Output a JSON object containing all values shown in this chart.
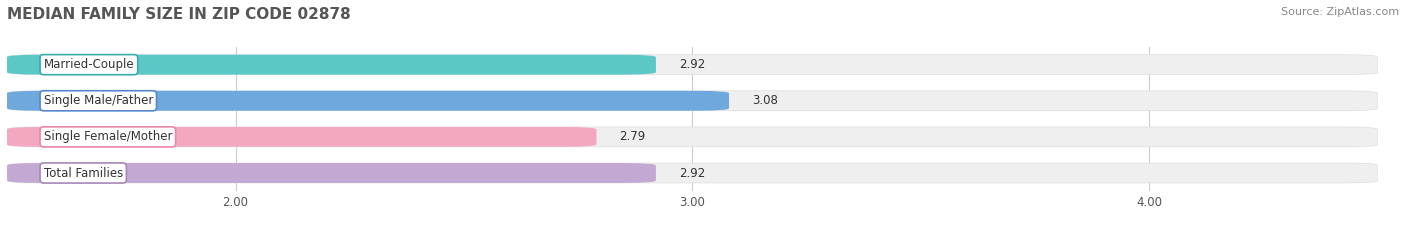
{
  "title": "MEDIAN FAMILY SIZE IN ZIP CODE 02878",
  "source": "Source: ZipAtlas.com",
  "categories": [
    "Married-Couple",
    "Single Male/Father",
    "Single Female/Mother",
    "Total Families"
  ],
  "values": [
    2.92,
    3.08,
    2.79,
    2.92
  ],
  "bar_colors": [
    "#5bc8c5",
    "#6fa8dc",
    "#f4a8c0",
    "#c4a8d4"
  ],
  "bar_edge_colors": [
    "#3aabab",
    "#5588cc",
    "#e888a8",
    "#a888b8"
  ],
  "xmin": 1.5,
  "xmax": 4.5,
  "xticks": [
    2.0,
    3.0,
    4.0
  ],
  "xtick_labels": [
    "2.00",
    "3.00",
    "4.00"
  ],
  "background_color": "#ffffff",
  "bar_background_color": "#efefef",
  "title_fontsize": 11,
  "source_fontsize": 8,
  "value_fontsize": 8.5,
  "label_fontsize": 8.5,
  "tick_fontsize": 8.5,
  "bar_height": 0.55
}
